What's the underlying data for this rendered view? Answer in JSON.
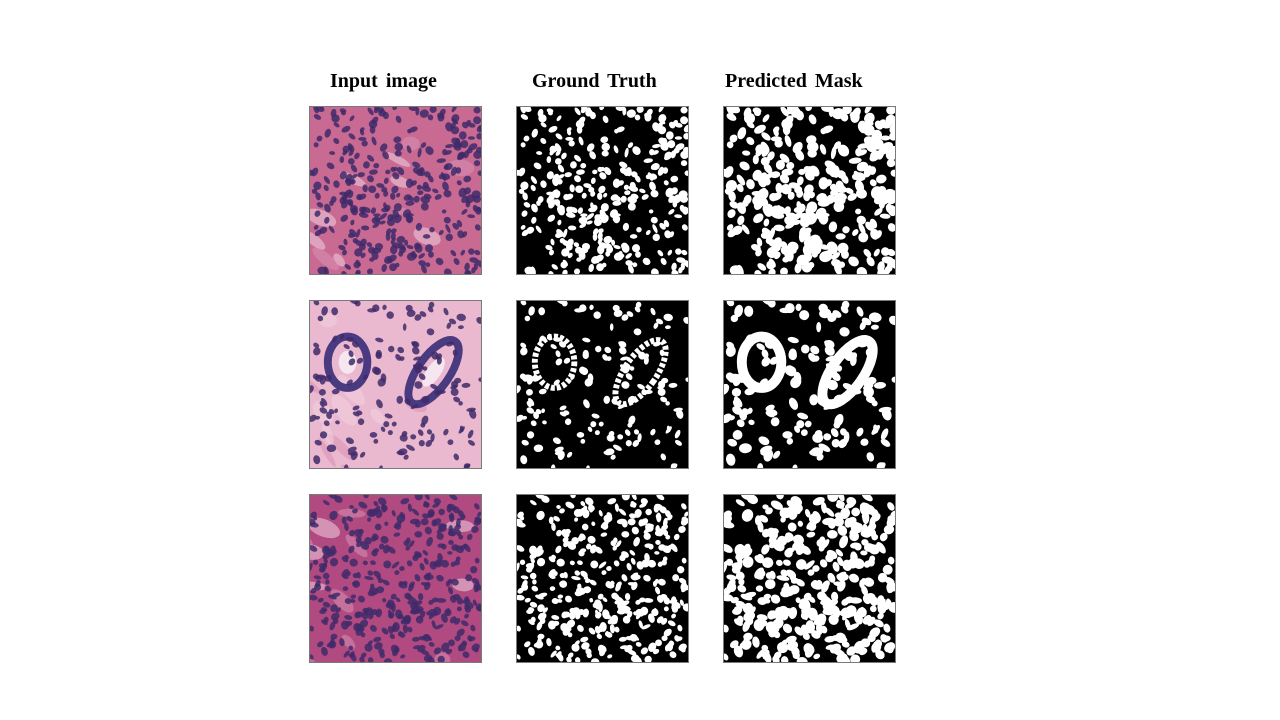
{
  "headers": {
    "input": "Input image",
    "ground_truth": "Ground Truth",
    "predicted": "Predicted Mask"
  },
  "rows": [
    {
      "input_alt": "histology sample 1",
      "gt_alt": "ground truth mask 1",
      "pred_alt": "predicted mask 1"
    },
    {
      "input_alt": "histology sample 2",
      "gt_alt": "ground truth mask 2",
      "pred_alt": "predicted mask 2"
    },
    {
      "input_alt": "histology sample 3",
      "gt_alt": "ground truth mask 3",
      "pred_alt": "predicted mask 3"
    }
  ],
  "colors": {
    "stain_pink_dark": "#c86a92",
    "stain_pink_light": "#eab8cf",
    "nucleus_purple": "#3f2a6a",
    "mask_background": "#000000",
    "mask_foreground": "#ffffff"
  }
}
